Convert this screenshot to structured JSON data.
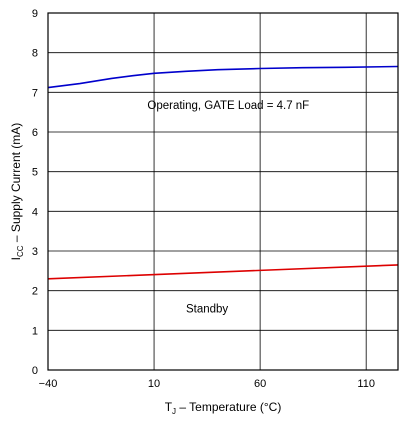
{
  "chart_data": {
    "type": "line",
    "title": "",
    "xlabel": {
      "base": "T",
      "sub": "J",
      "rest": " – Temperature (°C)"
    },
    "ylabel": {
      "base": "I",
      "sub": "CC",
      "rest": " – Supply Current (mA)"
    },
    "xlim": [
      -40,
      125
    ],
    "ylim": [
      0,
      9
    ],
    "xticks": [
      -40,
      10,
      60,
      110
    ],
    "xtick_labels": [
      "−40",
      "10",
      "60",
      "110"
    ],
    "yticks": [
      0,
      1,
      2,
      3,
      4,
      5,
      6,
      7,
      8,
      9
    ],
    "ytick_labels": [
      "0",
      "1",
      "2",
      "3",
      "4",
      "5",
      "6",
      "7",
      "8",
      "9"
    ],
    "grid": true,
    "series": [
      {
        "name": "Operating, GATE Load = 4.7 nF",
        "color": "#0000cc",
        "x": [
          -40,
          -25,
          -10,
          0,
          10,
          25,
          40,
          60,
          80,
          100,
          125
        ],
        "y": [
          7.12,
          7.22,
          7.35,
          7.42,
          7.48,
          7.53,
          7.57,
          7.6,
          7.62,
          7.63,
          7.65
        ]
      },
      {
        "name": "Standby",
        "color": "#dd0000",
        "x": [
          -40,
          125
        ],
        "y": [
          2.3,
          2.65
        ]
      }
    ],
    "annotations": [
      {
        "text": "Operating, GATE Load = 4.7 nF",
        "x": 45,
        "y": 6.68
      },
      {
        "text": "Standby",
        "x": 35,
        "y": 1.55
      }
    ]
  }
}
